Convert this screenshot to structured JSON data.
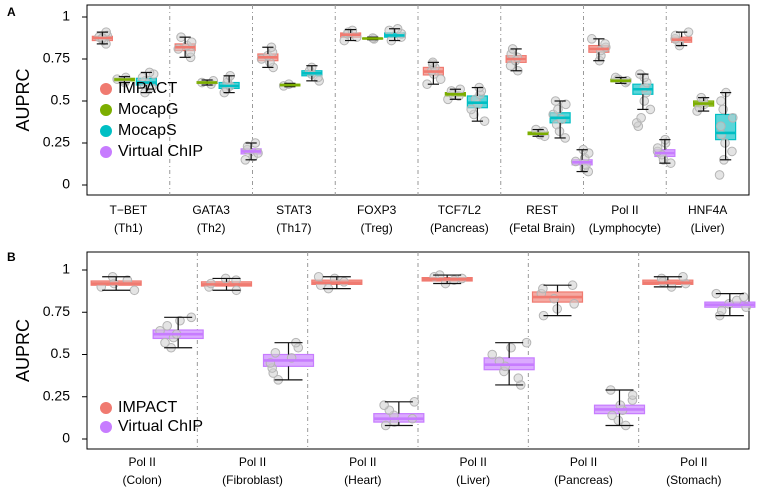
{
  "colors": {
    "impact": "#f07a70",
    "mocapg": "#7cae00",
    "mocaps": "#00bfc4",
    "virtualchip": "#c77cff",
    "points": "#bdbdbd",
    "whisker": "#111111",
    "separator": "#9a9a9a"
  },
  "chart_data": [
    {
      "type": "box",
      "panel_label": "A",
      "ylabel": "AUPRC",
      "ylim": [
        0,
        1
      ],
      "yticks": [
        0,
        0.25,
        0.5,
        0.75,
        1
      ],
      "ytick_labels": [
        "0",
        "0.25",
        "0.5",
        "0.75",
        "1"
      ],
      "legend_position": "bottom-left",
      "legend": [
        {
          "name": "IMPACT",
          "color_key": "impact"
        },
        {
          "name": "MocapG",
          "color_key": "mocapg"
        },
        {
          "name": "MocapS",
          "color_key": "mocaps"
        },
        {
          "name": "Virtual ChIP",
          "color_key": "virtualchip"
        }
      ],
      "series": [
        "IMPACT",
        "MocapG",
        "MocapS",
        "Virtual ChIP"
      ],
      "groups": [
        {
          "label1": "T−BET",
          "label2": "(Th1)",
          "boxes": [
            {
              "series": 0,
              "min": 0.84,
              "q1": 0.86,
              "median": 0.875,
              "q3": 0.885,
              "max": 0.91,
              "points": [
                0.84,
                0.86,
                0.87,
                0.88,
                0.89,
                0.91,
                0.875
              ]
            },
            {
              "series": 1,
              "min": 0.61,
              "q1": 0.62,
              "median": 0.628,
              "q3": 0.635,
              "max": 0.645,
              "points": [
                0.61,
                0.62,
                0.63,
                0.64,
                0.625
              ]
            },
            {
              "series": 2,
              "min": 0.55,
              "q1": 0.595,
              "median": 0.61,
              "q3": 0.635,
              "max": 0.67,
              "points": [
                0.55,
                0.58,
                0.6,
                0.62,
                0.64,
                0.66,
                0.67
              ]
            },
            {
              "series": 3,
              "empty": true
            }
          ]
        },
        {
          "label1": "GATA3",
          "label2": "(Th2)",
          "boxes": [
            {
              "series": 0,
              "min": 0.76,
              "q1": 0.8,
              "median": 0.82,
              "q3": 0.84,
              "max": 0.88,
              "points": [
                0.76,
                0.79,
                0.81,
                0.83,
                0.85,
                0.88
              ]
            },
            {
              "series": 1,
              "min": 0.595,
              "q1": 0.605,
              "median": 0.61,
              "q3": 0.615,
              "max": 0.625,
              "points": [
                0.6,
                0.61,
                0.62
              ]
            },
            {
              "series": 2,
              "min": 0.55,
              "q1": 0.575,
              "median": 0.59,
              "q3": 0.61,
              "max": 0.65,
              "points": [
                0.55,
                0.57,
                0.59,
                0.61,
                0.63,
                0.65
              ]
            },
            {
              "series": 3,
              "min": 0.15,
              "q1": 0.185,
              "median": 0.2,
              "q3": 0.215,
              "max": 0.25,
              "points": [
                0.15,
                0.17,
                0.19,
                0.21,
                0.23,
                0.25
              ]
            }
          ]
        },
        {
          "label1": "STAT3",
          "label2": "(Th17)",
          "boxes": [
            {
              "series": 0,
              "min": 0.7,
              "q1": 0.74,
              "median": 0.76,
              "q3": 0.78,
              "max": 0.82,
              "points": [
                0.7,
                0.73,
                0.75,
                0.77,
                0.79,
                0.82
              ]
            },
            {
              "series": 1,
              "min": 0.585,
              "q1": 0.59,
              "median": 0.595,
              "q3": 0.6,
              "max": 0.605,
              "points": [
                0.59,
                0.6
              ]
            },
            {
              "series": 2,
              "min": 0.62,
              "q1": 0.65,
              "median": 0.665,
              "q3": 0.68,
              "max": 0.71,
              "points": [
                0.62,
                0.64,
                0.66,
                0.68,
                0.7
              ]
            },
            {
              "series": 3,
              "empty": true
            }
          ]
        },
        {
          "label1": "FOXP3",
          "label2": "(Treg)",
          "boxes": [
            {
              "series": 0,
              "min": 0.86,
              "q1": 0.88,
              "median": 0.895,
              "q3": 0.905,
              "max": 0.925,
              "points": [
                0.86,
                0.88,
                0.9,
                0.91,
                0.92
              ]
            },
            {
              "series": 1,
              "min": 0.865,
              "q1": 0.87,
              "median": 0.872,
              "q3": 0.875,
              "max": 0.88,
              "points": [
                0.87,
                0.875
              ]
            },
            {
              "series": 2,
              "min": 0.86,
              "q1": 0.88,
              "median": 0.89,
              "q3": 0.905,
              "max": 0.93,
              "points": [
                0.86,
                0.88,
                0.9,
                0.92,
                0.93
              ]
            },
            {
              "series": 3,
              "empty": true
            }
          ]
        },
        {
          "label1": "TCF7L2",
          "label2": "(Pancreas)",
          "boxes": [
            {
              "series": 0,
              "min": 0.6,
              "q1": 0.655,
              "median": 0.675,
              "q3": 0.7,
              "max": 0.73,
              "points": [
                0.6,
                0.63,
                0.66,
                0.68,
                0.7,
                0.72,
                0.73
              ]
            },
            {
              "series": 1,
              "min": 0.51,
              "q1": 0.53,
              "median": 0.54,
              "q3": 0.55,
              "max": 0.57,
              "points": [
                0.51,
                0.53,
                0.54,
                0.56,
                0.57
              ]
            },
            {
              "series": 2,
              "min": 0.38,
              "q1": 0.46,
              "median": 0.49,
              "q3": 0.53,
              "max": 0.58,
              "points": [
                0.38,
                0.42,
                0.45,
                0.48,
                0.51,
                0.54,
                0.56,
                0.58
              ]
            },
            {
              "series": 3,
              "empty": true
            }
          ]
        },
        {
          "label1": "REST",
          "label2": "(Fetal Brain)",
          "boxes": [
            {
              "series": 0,
              "min": 0.68,
              "q1": 0.73,
              "median": 0.75,
              "q3": 0.77,
              "max": 0.81,
              "points": [
                0.68,
                0.71,
                0.74,
                0.76,
                0.78,
                0.81
              ]
            },
            {
              "series": 1,
              "min": 0.29,
              "q1": 0.3,
              "median": 0.305,
              "q3": 0.315,
              "max": 0.33,
              "points": [
                0.29,
                0.3,
                0.31,
                0.32,
                0.33
              ]
            },
            {
              "series": 2,
              "min": 0.28,
              "q1": 0.37,
              "median": 0.4,
              "q3": 0.43,
              "max": 0.5,
              "points": [
                0.28,
                0.32,
                0.36,
                0.39,
                0.42,
                0.45,
                0.48,
                0.5
              ]
            },
            {
              "series": 3,
              "min": 0.08,
              "q1": 0.12,
              "median": 0.135,
              "q3": 0.15,
              "max": 0.21,
              "points": [
                0.08,
                0.1,
                0.12,
                0.14,
                0.16,
                0.19,
                0.21
              ]
            }
          ]
        },
        {
          "label1": "Pol II",
          "label2": "(Lymphocyte)",
          "boxes": [
            {
              "series": 0,
              "min": 0.74,
              "q1": 0.79,
              "median": 0.81,
              "q3": 0.83,
              "max": 0.87,
              "points": [
                0.74,
                0.77,
                0.8,
                0.82,
                0.84,
                0.87
              ]
            },
            {
              "series": 1,
              "min": 0.605,
              "q1": 0.615,
              "median": 0.62,
              "q3": 0.63,
              "max": 0.64,
              "points": [
                0.61,
                0.62,
                0.63,
                0.64
              ]
            },
            {
              "series": 2,
              "min": 0.45,
              "q1": 0.54,
              "median": 0.57,
              "q3": 0.6,
              "max": 0.66,
              "points": [
                0.45,
                0.5,
                0.55,
                0.58,
                0.61,
                0.64,
                0.66,
                0.35,
                0.37,
                0.4
              ]
            },
            {
              "series": 3,
              "min": 0.13,
              "q1": 0.17,
              "median": 0.19,
              "q3": 0.21,
              "max": 0.27,
              "points": [
                0.13,
                0.15,
                0.18,
                0.2,
                0.22,
                0.25,
                0.27
              ]
            }
          ]
        },
        {
          "label1": "HNF4A",
          "label2": "(Liver)",
          "boxes": [
            {
              "series": 0,
              "min": 0.83,
              "q1": 0.85,
              "median": 0.865,
              "q3": 0.88,
              "max": 0.91,
              "points": [
                0.83,
                0.85,
                0.87,
                0.89,
                0.91
              ]
            },
            {
              "series": 1,
              "min": 0.44,
              "q1": 0.47,
              "median": 0.485,
              "q3": 0.5,
              "max": 0.52,
              "points": [
                0.44,
                0.46,
                0.48,
                0.5,
                0.52
              ]
            },
            {
              "series": 2,
              "min": 0.15,
              "q1": 0.27,
              "median": 0.31,
              "q3": 0.42,
              "max": 0.55,
              "points": [
                0.06,
                0.15,
                0.2,
                0.25,
                0.3,
                0.35,
                0.4,
                0.45,
                0.5,
                0.55
              ]
            },
            {
              "series": 3,
              "empty": true
            }
          ]
        }
      ]
    },
    {
      "type": "box",
      "panel_label": "B",
      "ylabel": "AUPRC",
      "ylim": [
        0,
        1
      ],
      "yticks": [
        0,
        0.25,
        0.5,
        0.75,
        1
      ],
      "ytick_labels": [
        "0",
        "0.25",
        "0.5",
        "0.75",
        "1"
      ],
      "legend_position": "bottom-left",
      "legend": [
        {
          "name": "IMPACT",
          "color_key": "impact"
        },
        {
          "name": "Virtual ChIP",
          "color_key": "virtualchip"
        }
      ],
      "series": [
        "IMPACT",
        "Virtual ChIP"
      ],
      "groups": [
        {
          "label1": "Pol II",
          "label2": "(Colon)",
          "boxes": [
            {
              "series": 0,
              "min": 0.88,
              "q1": 0.91,
              "median": 0.92,
              "q3": 0.935,
              "max": 0.96,
              "points": [
                0.88,
                0.9,
                0.92,
                0.94,
                0.96
              ]
            },
            {
              "series": 1,
              "min": 0.54,
              "q1": 0.595,
              "median": 0.62,
              "q3": 0.645,
              "max": 0.72,
              "points": [
                0.54,
                0.57,
                0.6,
                0.62,
                0.64,
                0.67,
                0.7,
                0.72
              ]
            }
          ]
        },
        {
          "label1": "Pol II",
          "label2": "(Fibroblast)",
          "boxes": [
            {
              "series": 0,
              "min": 0.88,
              "q1": 0.905,
              "median": 0.915,
              "q3": 0.93,
              "max": 0.95,
              "points": [
                0.88,
                0.9,
                0.92,
                0.94,
                0.95
              ]
            },
            {
              "series": 1,
              "min": 0.35,
              "q1": 0.43,
              "median": 0.465,
              "q3": 0.5,
              "max": 0.57,
              "points": [
                0.35,
                0.39,
                0.42,
                0.45,
                0.48,
                0.51,
                0.54,
                0.57
              ]
            }
          ]
        },
        {
          "label1": "Pol II",
          "label2": "(Heart)",
          "boxes": [
            {
              "series": 0,
              "min": 0.89,
              "q1": 0.915,
              "median": 0.925,
              "q3": 0.94,
              "max": 0.96,
              "points": [
                0.89,
                0.91,
                0.93,
                0.95,
                0.96
              ]
            },
            {
              "series": 1,
              "min": 0.08,
              "q1": 0.1,
              "median": 0.12,
              "q3": 0.15,
              "max": 0.22,
              "points": [
                0.08,
                0.1,
                0.12,
                0.14,
                0.17,
                0.2,
                0.22
              ]
            }
          ]
        },
        {
          "label1": "Pol II",
          "label2": "(Liver)",
          "boxes": [
            {
              "series": 0,
              "min": 0.92,
              "q1": 0.935,
              "median": 0.945,
              "q3": 0.955,
              "max": 0.97,
              "points": [
                0.92,
                0.94,
                0.95,
                0.96,
                0.97
              ]
            },
            {
              "series": 1,
              "min": 0.32,
              "q1": 0.41,
              "median": 0.44,
              "q3": 0.48,
              "max": 0.57,
              "points": [
                0.32,
                0.36,
                0.4,
                0.43,
                0.46,
                0.5,
                0.54,
                0.57
              ]
            }
          ]
        },
        {
          "label1": "Pol II",
          "label2": "(Pancreas)",
          "boxes": [
            {
              "series": 0,
              "min": 0.73,
              "q1": 0.81,
              "median": 0.84,
              "q3": 0.87,
              "max": 0.91,
              "points": [
                0.73,
                0.77,
                0.8,
                0.83,
                0.86,
                0.89,
                0.91
              ]
            },
            {
              "series": 1,
              "min": 0.08,
              "q1": 0.15,
              "median": 0.175,
              "q3": 0.2,
              "max": 0.29,
              "points": [
                0.08,
                0.11,
                0.14,
                0.17,
                0.2,
                0.23,
                0.26,
                0.29
              ]
            }
          ]
        },
        {
          "label1": "Pol II",
          "label2": "(Stomach)",
          "boxes": [
            {
              "series": 0,
              "min": 0.9,
              "q1": 0.915,
              "median": 0.925,
              "q3": 0.94,
              "max": 0.96,
              "points": [
                0.9,
                0.92,
                0.93,
                0.95,
                0.96
              ]
            },
            {
              "series": 1,
              "min": 0.73,
              "q1": 0.78,
              "median": 0.795,
              "q3": 0.81,
              "max": 0.86,
              "points": [
                0.73,
                0.76,
                0.78,
                0.8,
                0.82,
                0.84,
                0.86
              ]
            }
          ]
        }
      ]
    }
  ]
}
